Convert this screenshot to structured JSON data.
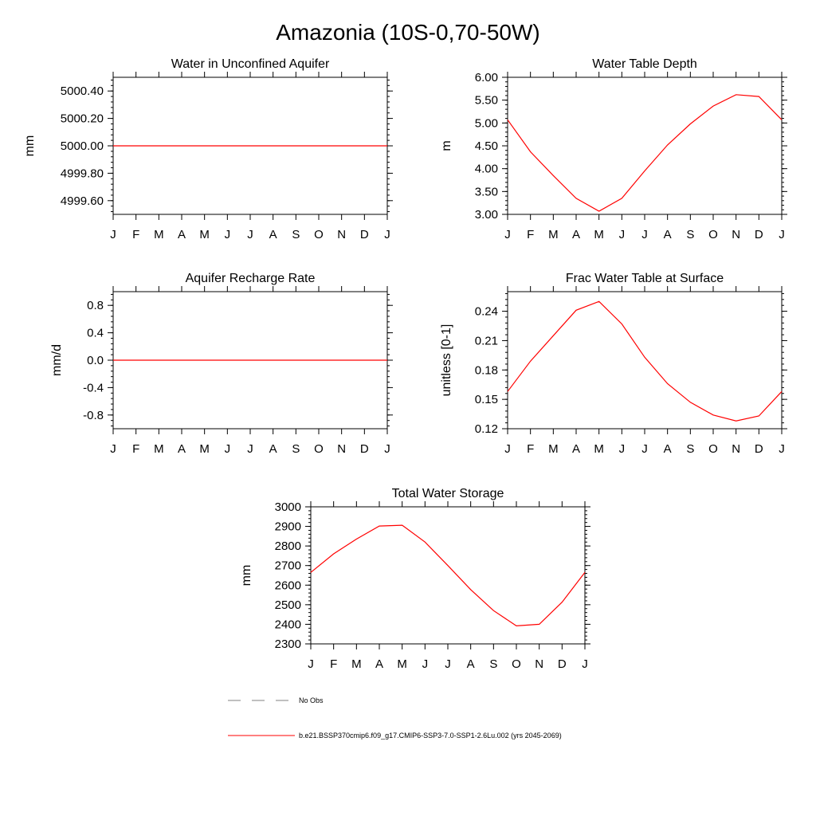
{
  "figure": {
    "title": "Amazonia (10S-0,70-50W)"
  },
  "months": [
    "J",
    "F",
    "M",
    "A",
    "M",
    "J",
    "J",
    "A",
    "S",
    "O",
    "N",
    "D",
    "J"
  ],
  "colors": {
    "series": "#ff0000",
    "obs": "#808080",
    "axis": "#000000"
  },
  "chart_data": [
    {
      "type": "line",
      "title": "Water in Unconfined Aquifer",
      "ylabel": "mm",
      "ylim": [
        4999.5,
        5000.5
      ],
      "yticks": [
        4999.6,
        4999.8,
        5000.0,
        5000.2,
        5000.4
      ],
      "ytick_labels": [
        "4999.60",
        "4999.80",
        "5000.00",
        "5000.20",
        "5000.40"
      ],
      "x": [
        "J",
        "F",
        "M",
        "A",
        "M",
        "J",
        "J",
        "A",
        "S",
        "O",
        "N",
        "D",
        "J"
      ],
      "series": [
        {
          "values": [
            5000,
            5000,
            5000,
            5000,
            5000,
            5000,
            5000,
            5000,
            5000,
            5000,
            5000,
            5000,
            5000
          ]
        }
      ]
    },
    {
      "type": "line",
      "title": "Water Table Depth",
      "ylabel": "m",
      "ylim": [
        3.0,
        6.0
      ],
      "yticks": [
        3.0,
        3.5,
        4.0,
        4.5,
        5.0,
        5.5,
        6.0
      ],
      "ytick_labels": [
        "3.00",
        "3.50",
        "4.00",
        "4.50",
        "5.00",
        "5.50",
        "6.00"
      ],
      "x": [
        "J",
        "F",
        "M",
        "A",
        "M",
        "J",
        "J",
        "A",
        "S",
        "O",
        "N",
        "D",
        "J"
      ],
      "series": [
        {
          "values": [
            5.07,
            4.37,
            3.85,
            3.35,
            3.07,
            3.35,
            3.95,
            4.52,
            4.98,
            5.37,
            5.62,
            5.58,
            5.07
          ]
        }
      ]
    },
    {
      "type": "line",
      "title": "Aquifer Recharge Rate",
      "ylabel": "mm/d",
      "ylim": [
        -1.0,
        1.0
      ],
      "yticks": [
        -0.8,
        -0.4,
        0.0,
        0.4,
        0.8
      ],
      "ytick_labels": [
        "-0.8",
        "-0.4",
        "0.0",
        "0.4",
        "0.8"
      ],
      "x": [
        "J",
        "F",
        "M",
        "A",
        "M",
        "J",
        "J",
        "A",
        "S",
        "O",
        "N",
        "D",
        "J"
      ],
      "series": [
        {
          "values": [
            0,
            0,
            0,
            0,
            0,
            0,
            0,
            0,
            0,
            0,
            0,
            0,
            0
          ]
        }
      ]
    },
    {
      "type": "line",
      "title": "Frac Water Table at Surface",
      "ylabel": "unitless [0-1]",
      "ylim": [
        0.12,
        0.26
      ],
      "yticks": [
        0.12,
        0.15,
        0.18,
        0.21,
        0.24
      ],
      "ytick_labels": [
        "0.12",
        "0.15",
        "0.18",
        "0.21",
        "0.24"
      ],
      "x": [
        "J",
        "F",
        "M",
        "A",
        "M",
        "J",
        "J",
        "A",
        "S",
        "O",
        "N",
        "D",
        "J"
      ],
      "series": [
        {
          "values": [
            0.158,
            0.189,
            0.215,
            0.241,
            0.25,
            0.227,
            0.193,
            0.166,
            0.147,
            0.134,
            0.128,
            0.133,
            0.158
          ]
        }
      ]
    },
    {
      "type": "line",
      "title": "Total Water Storage",
      "ylabel": "mm",
      "ylim": [
        2300,
        3000
      ],
      "yticks": [
        2300,
        2400,
        2500,
        2600,
        2700,
        2800,
        2900,
        3000
      ],
      "ytick_labels": [
        "2300",
        "2400",
        "2500",
        "2600",
        "2700",
        "2800",
        "2900",
        "3000"
      ],
      "x": [
        "J",
        "F",
        "M",
        "A",
        "M",
        "J",
        "J",
        "A",
        "S",
        "O",
        "N",
        "D",
        "J"
      ],
      "series": [
        {
          "values": [
            2665,
            2760,
            2835,
            2902,
            2906,
            2820,
            2700,
            2577,
            2470,
            2392,
            2400,
            2513,
            2665
          ]
        }
      ]
    }
  ],
  "legend": {
    "obs_label": "No Obs",
    "model_label": "b.e21.BSSP370cmip6.f09_g17.CMIP6-SSP3-7.0-SSP1-2.6Lu.002 (yrs 2045-2069)"
  }
}
